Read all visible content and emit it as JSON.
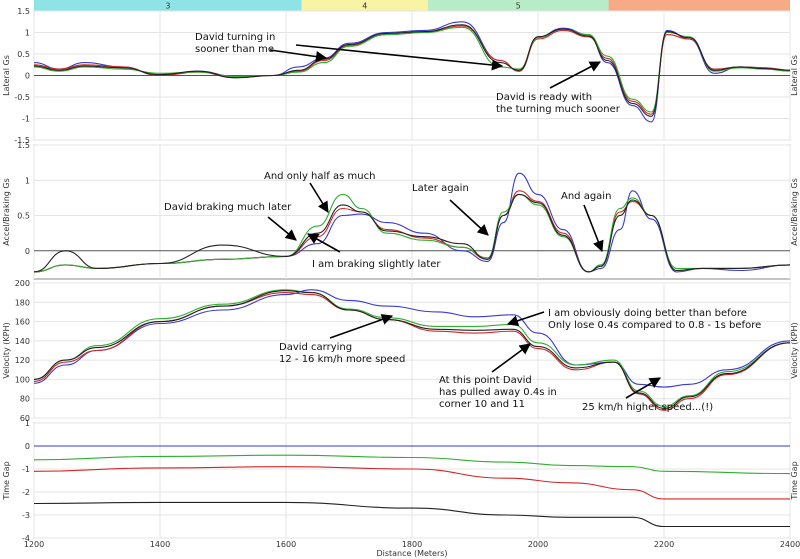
{
  "chart_data": {
    "type": "line",
    "xlabel": "Distance (Meters)",
    "xlim": [
      1200,
      2400
    ],
    "x_ticks": [
      "1200",
      "1400",
      "1600",
      "1800",
      "2000",
      "2200",
      "2400"
    ],
    "series_colors": [
      "#3a3acd",
      "#d42626",
      "#2fae2f",
      "#222222"
    ],
    "segments": [
      {
        "label": "3",
        "range": [
          1200,
          1625
        ],
        "color": "#8ee3e6"
      },
      {
        "label": "4",
        "range": [
          1625,
          1825
        ],
        "color": "#f8f4a6"
      },
      {
        "label": "5",
        "range": [
          1825,
          2112
        ],
        "color": "#b8ecc8"
      },
      {
        "label": "",
        "range": [
          2112,
          2400
        ],
        "color": "#f7ab85"
      }
    ],
    "panels": [
      {
        "ylabel": "Lateral Gs",
        "ylim": [
          -1.5,
          1.5
        ],
        "y_ticks": [
          "1.5",
          "1",
          "0.5",
          "0",
          "-0.5",
          "-1",
          "-1.5"
        ],
        "series": [
          {
            "x": [
              1200,
              1240,
              1280,
              1340,
              1400,
              1460,
              1520,
              1580,
              1620,
              1660,
              1700,
              1760,
              1820,
              1880,
              1940,
              1970,
              2000,
              2040,
              2080,
              2110,
              2150,
              2180,
              2205,
              2240,
              2280,
              2320,
              2360,
              2400
            ],
            "values": [
              0.3,
              0.15,
              0.3,
              0.2,
              0.0,
              0.1,
              -0.02,
              0.0,
              0.2,
              0.4,
              0.75,
              1.0,
              1.05,
              1.25,
              0.35,
              0.1,
              0.9,
              1.1,
              0.95,
              0.3,
              -0.7,
              -1.08,
              1.05,
              0.85,
              0.05,
              0.2,
              0.18,
              0.12
            ]
          },
          {
            "x": [
              1200,
              1240,
              1280,
              1340,
              1400,
              1460,
              1520,
              1580,
              1620,
              1660,
              1700,
              1760,
              1820,
              1880,
              1940,
              1970,
              2000,
              2040,
              2080,
              2110,
              2150,
              2180,
              2205,
              2240,
              2280,
              2320,
              2360,
              2400
            ],
            "values": [
              0.25,
              0.15,
              0.25,
              0.2,
              0.0,
              0.08,
              -0.05,
              0.0,
              0.1,
              0.35,
              0.7,
              0.95,
              1.0,
              1.15,
              0.35,
              0.1,
              0.85,
              1.05,
              0.9,
              0.4,
              -0.6,
              -0.9,
              0.95,
              0.85,
              0.15,
              0.2,
              0.18,
              0.12
            ]
          },
          {
            "x": [
              1200,
              1240,
              1280,
              1340,
              1400,
              1460,
              1520,
              1580,
              1620,
              1660,
              1700,
              1760,
              1820,
              1880,
              1940,
              1970,
              2000,
              2040,
              2080,
              2110,
              2150,
              2180,
              2205,
              2240,
              2280,
              2320,
              2360,
              2400
            ],
            "values": [
              0.2,
              0.1,
              0.2,
              0.15,
              0.05,
              0.08,
              -0.02,
              0.0,
              0.08,
              0.3,
              0.68,
              0.95,
              1.0,
              1.12,
              0.2,
              0.15,
              0.88,
              1.08,
              0.95,
              0.45,
              -0.55,
              -0.85,
              1.0,
              0.9,
              0.1,
              0.18,
              0.15,
              0.1
            ]
          },
          {
            "x": [
              1200,
              1240,
              1280,
              1340,
              1400,
              1460,
              1520,
              1580,
              1620,
              1660,
              1700,
              1760,
              1820,
              1880,
              1940,
              1970,
              2000,
              2040,
              2080,
              2110,
              2150,
              2180,
              2205,
              2240,
              2280,
              2320,
              2360,
              2400
            ],
            "values": [
              0.22,
              0.12,
              0.22,
              0.18,
              0.02,
              0.1,
              -0.05,
              0.0,
              0.12,
              0.38,
              0.72,
              0.98,
              1.02,
              1.18,
              0.3,
              0.12,
              0.9,
              1.08,
              0.92,
              0.35,
              -0.65,
              -0.95,
              1.02,
              0.88,
              0.12,
              0.2,
              0.16,
              0.12
            ]
          }
        ]
      },
      {
        "ylabel": "Accel/Braking Gs",
        "ylim": [
          -0.4,
          1.5
        ],
        "y_ticks": [
          "1.5",
          "1",
          "0.5",
          "0"
        ],
        "series": [
          {
            "x": [
              1200,
              1250,
              1300,
              1400,
              1500,
              1600,
              1650,
              1690,
              1720,
              1760,
              1820,
              1880,
              1920,
              1945,
              1970,
              2000,
              2040,
              2080,
              2100,
              2130,
              2150,
              2180,
              2220,
              2260,
              2320,
              2400
            ],
            "values": [
              -0.3,
              -0.2,
              -0.25,
              -0.18,
              -0.12,
              -0.08,
              0.1,
              0.5,
              0.52,
              0.4,
              0.25,
              0.0,
              -0.15,
              0.4,
              1.1,
              0.8,
              0.3,
              -0.3,
              -0.25,
              0.3,
              0.85,
              0.45,
              -0.3,
              -0.25,
              -0.28,
              -0.2
            ]
          },
          {
            "x": [
              1200,
              1250,
              1300,
              1400,
              1500,
              1600,
              1650,
              1690,
              1720,
              1760,
              1820,
              1880,
              1920,
              1945,
              1970,
              2000,
              2040,
              2080,
              2100,
              2130,
              2150,
              2180,
              2220,
              2260,
              2320,
              2400
            ],
            "values": [
              -0.3,
              -0.2,
              -0.25,
              -0.18,
              -0.12,
              -0.08,
              0.2,
              0.6,
              0.55,
              0.3,
              0.18,
              0.05,
              -0.12,
              0.5,
              0.85,
              0.7,
              0.25,
              -0.3,
              -0.2,
              0.55,
              0.7,
              0.5,
              -0.28,
              -0.25,
              -0.25,
              -0.2
            ]
          },
          {
            "x": [
              1200,
              1250,
              1300,
              1400,
              1500,
              1600,
              1650,
              1690,
              1720,
              1760,
              1820,
              1880,
              1920,
              1945,
              1970,
              2000,
              2040,
              2080,
              2100,
              2130,
              2150,
              2180,
              2220,
              2260,
              2320,
              2400
            ],
            "values": [
              -0.3,
              -0.2,
              -0.25,
              -0.18,
              -0.12,
              -0.08,
              0.35,
              0.8,
              0.6,
              0.25,
              0.15,
              0.05,
              -0.1,
              0.55,
              0.8,
              0.65,
              0.2,
              -0.3,
              -0.2,
              0.6,
              0.75,
              0.5,
              -0.25,
              -0.25,
              -0.25,
              -0.2
            ]
          },
          {
            "x": [
              1200,
              1250,
              1300,
              1400,
              1500,
              1600,
              1650,
              1690,
              1720,
              1760,
              1820,
              1880,
              1920,
              1945,
              1970,
              2000,
              2040,
              2080,
              2100,
              2130,
              2150,
              2180,
              2220,
              2260,
              2320,
              2400
            ],
            "values": [
              -0.3,
              0.0,
              -0.25,
              -0.18,
              0.08,
              -0.08,
              0.25,
              0.65,
              0.55,
              0.28,
              0.2,
              0.1,
              -0.12,
              0.5,
              0.8,
              0.68,
              0.22,
              -0.3,
              -0.22,
              0.5,
              0.72,
              0.5,
              -0.28,
              -0.25,
              -0.25,
              -0.2
            ]
          }
        ]
      },
      {
        "ylabel": "Velocity (KPH)",
        "ylim": [
          60,
          200
        ],
        "y_ticks": [
          "200",
          "180",
          "160",
          "140",
          "120",
          "100",
          "80",
          "60"
        ],
        "series": [
          {
            "x": [
              1200,
              1250,
              1300,
              1400,
              1500,
              1600,
              1640,
              1700,
              1760,
              1840,
              1900,
              1960,
              2000,
              2060,
              2120,
              2160,
              2200,
              2240,
              2300,
              2400
            ],
            "values": [
              96,
              115,
              130,
              158,
              172,
              188,
              193,
              182,
              176,
              170,
              165,
              167,
              148,
              115,
              118,
              95,
              92,
              95,
              110,
              140
            ]
          },
          {
            "x": [
              1200,
              1250,
              1300,
              1400,
              1500,
              1600,
              1640,
              1700,
              1760,
              1840,
              1900,
              1960,
              2000,
              2060,
              2120,
              2160,
              2200,
              2240,
              2300,
              2400
            ],
            "values": [
              98,
              118,
              130,
              160,
              176,
              190,
              188,
              172,
              162,
              150,
              148,
              150,
              132,
              110,
              118,
              85,
              68,
              80,
              105,
              138
            ]
          },
          {
            "x": [
              1200,
              1250,
              1300,
              1400,
              1500,
              1600,
              1640,
              1700,
              1760,
              1840,
              1900,
              1960,
              2000,
              2060,
              2120,
              2160,
              2200,
              2240,
              2300,
              2400
            ],
            "values": [
              100,
              120,
              135,
              163,
              178,
              193,
              190,
              173,
              164,
              155,
              155,
              157,
              138,
              115,
              120,
              88,
              72,
              83,
              108,
              138
            ]
          },
          {
            "x": [
              1200,
              1250,
              1300,
              1400,
              1500,
              1600,
              1640,
              1700,
              1760,
              1840,
              1900,
              1960,
              2000,
              2060,
              2120,
              2160,
              2200,
              2240,
              2300,
              2400
            ],
            "values": [
              100,
              120,
              133,
              160,
              176,
              192,
              190,
              172,
              162,
              152,
              151,
              152,
              134,
              112,
              118,
              86,
              70,
              82,
              106,
              138
            ]
          }
        ]
      },
      {
        "ylabel": "Time Gap",
        "ylim": [
          -4,
          1
        ],
        "y_ticks": [
          "1",
          "0",
          "-1",
          "-2",
          "-3",
          "-4"
        ],
        "series": [
          {
            "x": [
              1200,
              2400
            ],
            "values": [
              0.0,
              0.0
            ]
          },
          {
            "x": [
              1200,
              1400,
              1600,
              1800,
              1950,
              2050,
              2150,
              2200,
              2400
            ],
            "values": [
              -1.1,
              -0.95,
              -0.9,
              -1.0,
              -1.4,
              -1.6,
              -1.9,
              -2.3,
              -2.3
            ]
          },
          {
            "x": [
              1200,
              1400,
              1600,
              1800,
              1950,
              2050,
              2150,
              2200,
              2400
            ],
            "values": [
              -0.6,
              -0.45,
              -0.4,
              -0.5,
              -0.7,
              -0.85,
              -0.9,
              -1.1,
              -1.2
            ]
          },
          {
            "x": [
              1200,
              1400,
              1600,
              1800,
              1950,
              2050,
              2150,
              2200,
              2400
            ],
            "values": [
              -2.5,
              -2.45,
              -2.45,
              -2.7,
              -3.0,
              -3.1,
              -3.1,
              -3.5,
              -3.5
            ]
          }
        ]
      }
    ],
    "annotations": [
      {
        "panel": 0,
        "lines": [
          "David turning in",
          "sooner than me"
        ]
      },
      {
        "panel": 0,
        "lines": [
          "David is ready with",
          "the turning much sooner"
        ]
      },
      {
        "panel": 1,
        "lines": [
          "And only half as much"
        ]
      },
      {
        "panel": 1,
        "lines": [
          "David braking much later"
        ]
      },
      {
        "panel": 1,
        "lines": [
          "I am braking slightly later"
        ]
      },
      {
        "panel": 1,
        "lines": [
          "Later again"
        ]
      },
      {
        "panel": 1,
        "lines": [
          "And again"
        ]
      },
      {
        "panel": 2,
        "lines": [
          "I am obviously doing better than before",
          "Only lose 0.4s compared to 0.8 - 1s before"
        ]
      },
      {
        "panel": 2,
        "lines": [
          "David carrying",
          "12 - 16 km/h more speed"
        ]
      },
      {
        "panel": 2,
        "lines": [
          "At this point David",
          "has pulled away 0.4s in",
          "corner 10 and 11"
        ]
      },
      {
        "panel": 2,
        "lines": [
          "25 km/h higher speed...(!)"
        ]
      }
    ]
  }
}
